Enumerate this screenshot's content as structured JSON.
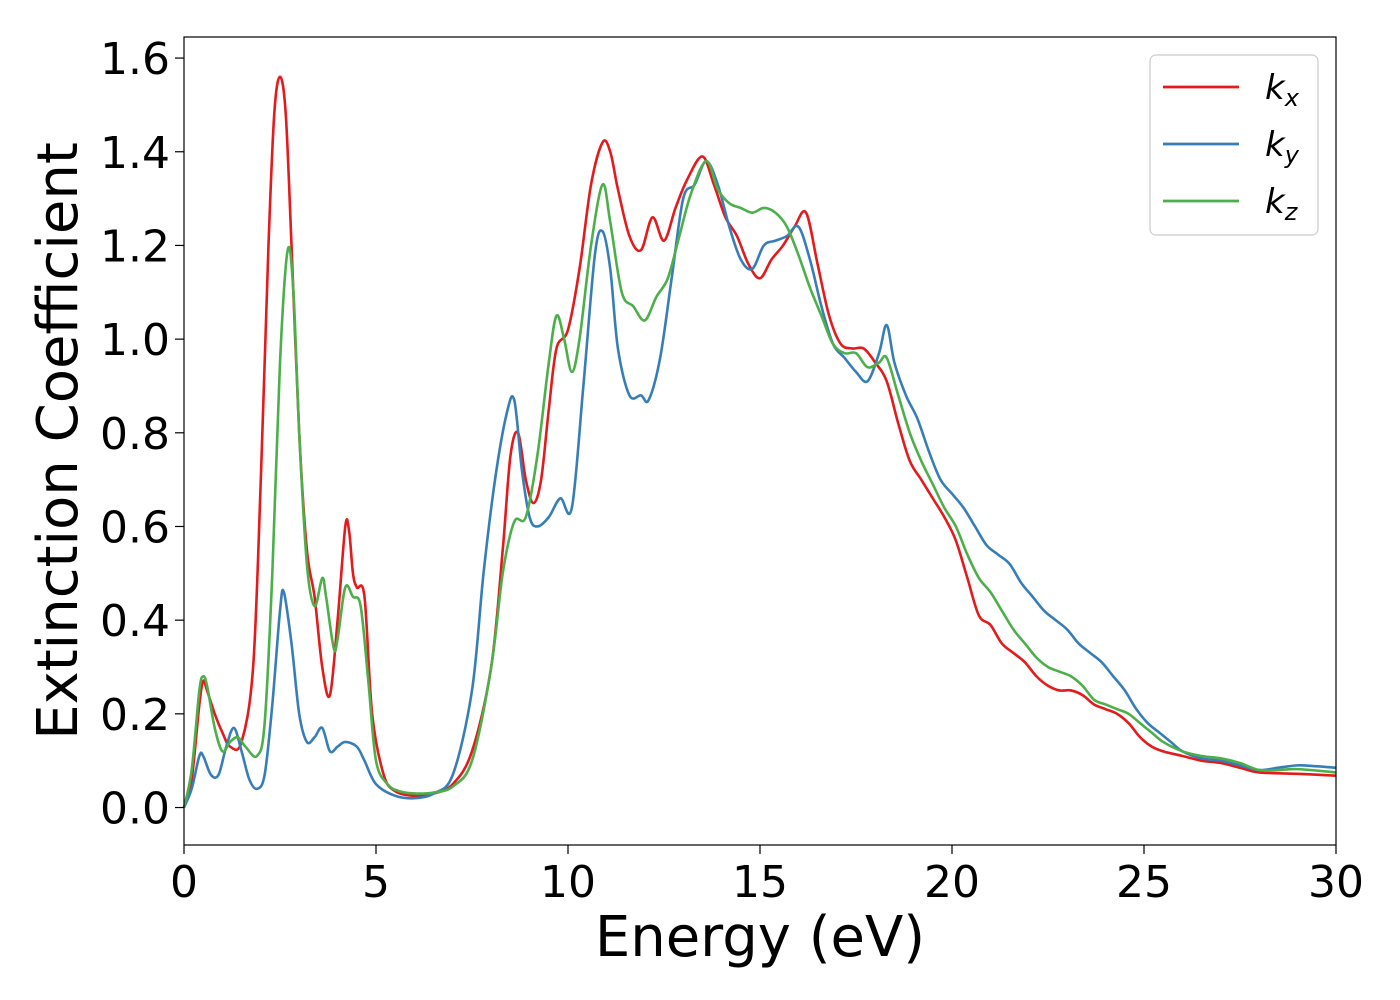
{
  "chart_data": {
    "type": "line",
    "xlabel": "Energy (eV)",
    "ylabel": "Extinction Coefficient",
    "xlim": [
      0,
      30
    ],
    "ylim": [
      -0.08,
      1.645
    ],
    "xticks": [
      0,
      5,
      10,
      15,
      20,
      25,
      30
    ],
    "xtick_labels": [
      "0",
      "5",
      "10",
      "15",
      "20",
      "25",
      "30"
    ],
    "yticks": [
      0.0,
      0.2,
      0.4,
      0.6,
      0.8,
      1.0,
      1.2,
      1.4,
      1.6
    ],
    "ytick_labels": [
      "0.0",
      "0.2",
      "0.4",
      "0.6",
      "0.8",
      "1.0",
      "1.2",
      "1.4",
      "1.6"
    ],
    "grid": false,
    "legend": {
      "position": "top-right"
    },
    "series": [
      {
        "name": "k",
        "subscript": "x",
        "color": "#e41a1c",
        "points": [
          [
            0,
            0.0
          ],
          [
            0.2,
            0.06
          ],
          [
            0.4,
            0.22
          ],
          [
            0.5,
            0.27
          ],
          [
            0.6,
            0.25
          ],
          [
            0.8,
            0.2
          ],
          [
            1.0,
            0.16
          ],
          [
            1.2,
            0.13
          ],
          [
            1.5,
            0.14
          ],
          [
            1.8,
            0.3
          ],
          [
            2.0,
            0.7
          ],
          [
            2.2,
            1.2
          ],
          [
            2.35,
            1.48
          ],
          [
            2.5,
            1.56
          ],
          [
            2.65,
            1.48
          ],
          [
            2.8,
            1.2
          ],
          [
            3.0,
            0.8
          ],
          [
            3.2,
            0.55
          ],
          [
            3.4,
            0.45
          ],
          [
            3.6,
            0.3
          ],
          [
            3.8,
            0.24
          ],
          [
            4.0,
            0.4
          ],
          [
            4.2,
            0.6
          ],
          [
            4.3,
            0.59
          ],
          [
            4.4,
            0.5
          ],
          [
            4.5,
            0.47
          ],
          [
            4.7,
            0.45
          ],
          [
            4.9,
            0.2
          ],
          [
            5.2,
            0.07
          ],
          [
            5.5,
            0.035
          ],
          [
            6.0,
            0.025
          ],
          [
            6.5,
            0.03
          ],
          [
            7.0,
            0.05
          ],
          [
            7.5,
            0.12
          ],
          [
            8.0,
            0.3
          ],
          [
            8.3,
            0.55
          ],
          [
            8.5,
            0.75
          ],
          [
            8.7,
            0.8
          ],
          [
            8.9,
            0.7
          ],
          [
            9.1,
            0.65
          ],
          [
            9.3,
            0.7
          ],
          [
            9.5,
            0.85
          ],
          [
            9.7,
            0.98
          ],
          [
            10.0,
            1.02
          ],
          [
            10.3,
            1.15
          ],
          [
            10.6,
            1.33
          ],
          [
            10.9,
            1.42
          ],
          [
            11.1,
            1.4
          ],
          [
            11.3,
            1.32
          ],
          [
            11.6,
            1.22
          ],
          [
            11.9,
            1.19
          ],
          [
            12.2,
            1.26
          ],
          [
            12.5,
            1.21
          ],
          [
            12.8,
            1.28
          ],
          [
            13.1,
            1.34
          ],
          [
            13.5,
            1.39
          ],
          [
            13.8,
            1.33
          ],
          [
            14.1,
            1.26
          ],
          [
            14.4,
            1.22
          ],
          [
            14.7,
            1.16
          ],
          [
            15.0,
            1.13
          ],
          [
            15.3,
            1.17
          ],
          [
            15.6,
            1.2
          ],
          [
            15.9,
            1.24
          ],
          [
            16.2,
            1.27
          ],
          [
            16.5,
            1.16
          ],
          [
            16.8,
            1.05
          ],
          [
            17.1,
            0.99
          ],
          [
            17.4,
            0.98
          ],
          [
            17.7,
            0.98
          ],
          [
            18.0,
            0.95
          ],
          [
            18.3,
            0.91
          ],
          [
            18.6,
            0.82
          ],
          [
            18.9,
            0.74
          ],
          [
            19.2,
            0.7
          ],
          [
            19.5,
            0.66
          ],
          [
            19.8,
            0.62
          ],
          [
            20.1,
            0.57
          ],
          [
            20.4,
            0.49
          ],
          [
            20.7,
            0.41
          ],
          [
            21.0,
            0.39
          ],
          [
            21.3,
            0.35
          ],
          [
            21.6,
            0.33
          ],
          [
            21.9,
            0.31
          ],
          [
            22.2,
            0.28
          ],
          [
            22.5,
            0.26
          ],
          [
            22.8,
            0.25
          ],
          [
            23.1,
            0.25
          ],
          [
            23.4,
            0.24
          ],
          [
            23.7,
            0.22
          ],
          [
            24.0,
            0.21
          ],
          [
            24.3,
            0.2
          ],
          [
            24.6,
            0.18
          ],
          [
            24.9,
            0.15
          ],
          [
            25.2,
            0.13
          ],
          [
            25.5,
            0.12
          ],
          [
            26.0,
            0.11
          ],
          [
            26.5,
            0.1
          ],
          [
            27.0,
            0.095
          ],
          [
            27.5,
            0.085
          ],
          [
            28.0,
            0.075
          ],
          [
            29.0,
            0.072
          ],
          [
            30.0,
            0.068
          ]
        ]
      },
      {
        "name": "k",
        "subscript": "y",
        "color": "#377eb8",
        "points": [
          [
            0,
            0.0
          ],
          [
            0.2,
            0.04
          ],
          [
            0.4,
            0.11
          ],
          [
            0.5,
            0.11
          ],
          [
            0.7,
            0.07
          ],
          [
            0.9,
            0.07
          ],
          [
            1.1,
            0.13
          ],
          [
            1.3,
            0.17
          ],
          [
            1.5,
            0.12
          ],
          [
            1.7,
            0.06
          ],
          [
            1.9,
            0.04
          ],
          [
            2.1,
            0.07
          ],
          [
            2.3,
            0.22
          ],
          [
            2.5,
            0.42
          ],
          [
            2.6,
            0.46
          ],
          [
            2.8,
            0.35
          ],
          [
            3.0,
            0.2
          ],
          [
            3.2,
            0.14
          ],
          [
            3.4,
            0.15
          ],
          [
            3.6,
            0.17
          ],
          [
            3.8,
            0.12
          ],
          [
            4.0,
            0.13
          ],
          [
            4.2,
            0.14
          ],
          [
            4.5,
            0.13
          ],
          [
            4.7,
            0.1
          ],
          [
            5.0,
            0.05
          ],
          [
            5.5,
            0.025
          ],
          [
            6.0,
            0.02
          ],
          [
            6.5,
            0.03
          ],
          [
            7.0,
            0.07
          ],
          [
            7.5,
            0.25
          ],
          [
            7.8,
            0.5
          ],
          [
            8.1,
            0.7
          ],
          [
            8.4,
            0.84
          ],
          [
            8.6,
            0.87
          ],
          [
            8.8,
            0.72
          ],
          [
            9.0,
            0.62
          ],
          [
            9.2,
            0.6
          ],
          [
            9.5,
            0.62
          ],
          [
            9.8,
            0.66
          ],
          [
            10.1,
            0.64
          ],
          [
            10.4,
            0.9
          ],
          [
            10.7,
            1.18
          ],
          [
            10.9,
            1.23
          ],
          [
            11.1,
            1.15
          ],
          [
            11.3,
            0.98
          ],
          [
            11.6,
            0.88
          ],
          [
            11.9,
            0.88
          ],
          [
            12.1,
            0.87
          ],
          [
            12.4,
            0.96
          ],
          [
            12.7,
            1.13
          ],
          [
            13.0,
            1.3
          ],
          [
            13.3,
            1.33
          ],
          [
            13.6,
            1.38
          ],
          [
            13.9,
            1.33
          ],
          [
            14.2,
            1.24
          ],
          [
            14.5,
            1.17
          ],
          [
            14.8,
            1.15
          ],
          [
            15.1,
            1.2
          ],
          [
            15.4,
            1.21
          ],
          [
            15.7,
            1.22
          ],
          [
            16.0,
            1.24
          ],
          [
            16.3,
            1.17
          ],
          [
            16.6,
            1.07
          ],
          [
            16.9,
            0.99
          ],
          [
            17.2,
            0.96
          ],
          [
            17.5,
            0.93
          ],
          [
            17.8,
            0.91
          ],
          [
            18.1,
            0.97
          ],
          [
            18.3,
            1.03
          ],
          [
            18.5,
            0.95
          ],
          [
            18.8,
            0.88
          ],
          [
            19.1,
            0.83
          ],
          [
            19.4,
            0.76
          ],
          [
            19.7,
            0.7
          ],
          [
            20.0,
            0.67
          ],
          [
            20.3,
            0.64
          ],
          [
            20.6,
            0.6
          ],
          [
            20.9,
            0.56
          ],
          [
            21.2,
            0.54
          ],
          [
            21.5,
            0.52
          ],
          [
            21.8,
            0.48
          ],
          [
            22.1,
            0.45
          ],
          [
            22.4,
            0.42
          ],
          [
            22.7,
            0.4
          ],
          [
            23.0,
            0.38
          ],
          [
            23.3,
            0.35
          ],
          [
            23.6,
            0.33
          ],
          [
            23.9,
            0.31
          ],
          [
            24.2,
            0.28
          ],
          [
            24.5,
            0.25
          ],
          [
            24.8,
            0.21
          ],
          [
            25.1,
            0.18
          ],
          [
            25.4,
            0.16
          ],
          [
            25.7,
            0.14
          ],
          [
            26.0,
            0.12
          ],
          [
            26.5,
            0.105
          ],
          [
            27.0,
            0.1
          ],
          [
            27.5,
            0.09
          ],
          [
            28.0,
            0.08
          ],
          [
            28.5,
            0.085
          ],
          [
            29.0,
            0.09
          ],
          [
            29.5,
            0.088
          ],
          [
            30.0,
            0.085
          ]
        ]
      },
      {
        "name": "k",
        "subscript": "z",
        "color": "#4daf4a",
        "points": [
          [
            0,
            0.0
          ],
          [
            0.2,
            0.08
          ],
          [
            0.4,
            0.25
          ],
          [
            0.5,
            0.28
          ],
          [
            0.6,
            0.26
          ],
          [
            0.8,
            0.17
          ],
          [
            1.0,
            0.12
          ],
          [
            1.2,
            0.14
          ],
          [
            1.4,
            0.15
          ],
          [
            1.6,
            0.13
          ],
          [
            1.9,
            0.11
          ],
          [
            2.1,
            0.18
          ],
          [
            2.3,
            0.5
          ],
          [
            2.5,
            0.95
          ],
          [
            2.7,
            1.19
          ],
          [
            2.85,
            1.1
          ],
          [
            3.0,
            0.8
          ],
          [
            3.2,
            0.52
          ],
          [
            3.4,
            0.43
          ],
          [
            3.6,
            0.49
          ],
          [
            3.7,
            0.45
          ],
          [
            3.9,
            0.34
          ],
          [
            4.0,
            0.36
          ],
          [
            4.2,
            0.47
          ],
          [
            4.4,
            0.45
          ],
          [
            4.6,
            0.43
          ],
          [
            4.8,
            0.27
          ],
          [
            5.0,
            0.1
          ],
          [
            5.3,
            0.05
          ],
          [
            5.6,
            0.035
          ],
          [
            6.0,
            0.03
          ],
          [
            6.5,
            0.032
          ],
          [
            7.0,
            0.045
          ],
          [
            7.5,
            0.1
          ],
          [
            8.0,
            0.3
          ],
          [
            8.3,
            0.5
          ],
          [
            8.6,
            0.61
          ],
          [
            8.9,
            0.62
          ],
          [
            9.2,
            0.75
          ],
          [
            9.5,
            0.95
          ],
          [
            9.7,
            1.05
          ],
          [
            9.9,
            1.0
          ],
          [
            10.1,
            0.93
          ],
          [
            10.3,
            1.0
          ],
          [
            10.6,
            1.2
          ],
          [
            10.9,
            1.33
          ],
          [
            11.1,
            1.25
          ],
          [
            11.4,
            1.1
          ],
          [
            11.7,
            1.07
          ],
          [
            12.0,
            1.04
          ],
          [
            12.3,
            1.09
          ],
          [
            12.6,
            1.13
          ],
          [
            12.9,
            1.22
          ],
          [
            13.2,
            1.31
          ],
          [
            13.6,
            1.38
          ],
          [
            13.9,
            1.32
          ],
          [
            14.2,
            1.29
          ],
          [
            14.5,
            1.28
          ],
          [
            14.8,
            1.27
          ],
          [
            15.1,
            1.28
          ],
          [
            15.4,
            1.27
          ],
          [
            15.7,
            1.24
          ],
          [
            16.0,
            1.18
          ],
          [
            16.3,
            1.11
          ],
          [
            16.6,
            1.05
          ],
          [
            16.9,
            0.99
          ],
          [
            17.2,
            0.97
          ],
          [
            17.5,
            0.97
          ],
          [
            17.8,
            0.94
          ],
          [
            18.1,
            0.95
          ],
          [
            18.3,
            0.96
          ],
          [
            18.6,
            0.88
          ],
          [
            18.9,
            0.8
          ],
          [
            19.2,
            0.74
          ],
          [
            19.5,
            0.69
          ],
          [
            19.8,
            0.64
          ],
          [
            20.1,
            0.6
          ],
          [
            20.4,
            0.54
          ],
          [
            20.7,
            0.49
          ],
          [
            21.0,
            0.46
          ],
          [
            21.3,
            0.42
          ],
          [
            21.6,
            0.38
          ],
          [
            21.9,
            0.35
          ],
          [
            22.2,
            0.32
          ],
          [
            22.5,
            0.3
          ],
          [
            22.8,
            0.29
          ],
          [
            23.1,
            0.28
          ],
          [
            23.4,
            0.26
          ],
          [
            23.7,
            0.23
          ],
          [
            24.0,
            0.22
          ],
          [
            24.3,
            0.21
          ],
          [
            24.6,
            0.2
          ],
          [
            24.9,
            0.18
          ],
          [
            25.2,
            0.16
          ],
          [
            25.5,
            0.14
          ],
          [
            26.0,
            0.12
          ],
          [
            26.5,
            0.11
          ],
          [
            27.0,
            0.105
          ],
          [
            27.5,
            0.095
          ],
          [
            28.0,
            0.08
          ],
          [
            28.5,
            0.08
          ],
          [
            29.0,
            0.082
          ],
          [
            30.0,
            0.075
          ]
        ]
      }
    ]
  }
}
